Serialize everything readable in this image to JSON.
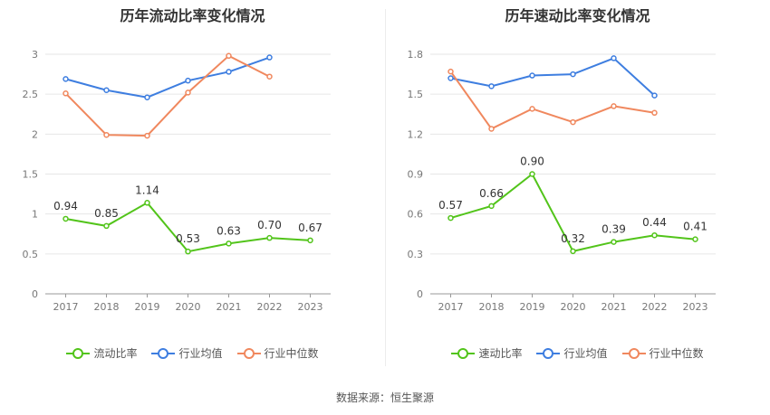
{
  "source": "数据来源：恒生聚源",
  "chart_data": [
    {
      "type": "line",
      "title": "历年流动比率变化情况",
      "categories": [
        "2017",
        "2018",
        "2019",
        "2020",
        "2021",
        "2022",
        "2023"
      ],
      "ylim": [
        0,
        3
      ],
      "yticks": [
        "0",
        "0.5",
        "1",
        "1.5",
        "2",
        "2.5",
        "3"
      ],
      "ytick_values": [
        0,
        0.5,
        1,
        1.5,
        2,
        2.5,
        3
      ],
      "grid": true,
      "legend_position": "bottom",
      "series": [
        {
          "name": "流动比率",
          "color": "#52c41a",
          "values": [
            0.94,
            0.85,
            1.14,
            0.53,
            0.63,
            0.7,
            0.67
          ],
          "labels": [
            "0.94",
            "0.85",
            "1.14",
            "0.53",
            "0.63",
            "0.70",
            "0.67"
          ]
        },
        {
          "name": "行业均值",
          "color": "#3e7ee0",
          "values": [
            2.69,
            2.55,
            2.46,
            2.67,
            2.78,
            2.96,
            null
          ]
        },
        {
          "name": "行业中位数",
          "color": "#f0885e",
          "values": [
            2.51,
            1.99,
            1.98,
            2.52,
            2.98,
            2.72,
            null
          ]
        }
      ]
    },
    {
      "type": "line",
      "title": "历年速动比率变化情况",
      "categories": [
        "2017",
        "2018",
        "2019",
        "2020",
        "2021",
        "2022",
        "2023"
      ],
      "ylim": [
        0,
        1.8
      ],
      "yticks": [
        "0",
        "0.3",
        "0.6",
        "0.9",
        "1.2",
        "1.5",
        "1.8"
      ],
      "ytick_values": [
        0,
        0.3,
        0.6,
        0.9,
        1.2,
        1.5,
        1.8
      ],
      "grid": true,
      "legend_position": "bottom",
      "series": [
        {
          "name": "速动比率",
          "color": "#52c41a",
          "values": [
            0.57,
            0.66,
            0.9,
            0.32,
            0.39,
            0.44,
            0.41
          ],
          "labels": [
            "0.57",
            "0.66",
            "0.90",
            "0.32",
            "0.39",
            "0.44",
            "0.41"
          ]
        },
        {
          "name": "行业均值",
          "color": "#3e7ee0",
          "values": [
            1.62,
            1.56,
            1.64,
            1.65,
            1.77,
            1.49,
            null
          ]
        },
        {
          "name": "行业中位数",
          "color": "#f0885e",
          "values": [
            1.67,
            1.24,
            1.39,
            1.29,
            1.41,
            1.36,
            null
          ]
        }
      ]
    }
  ]
}
